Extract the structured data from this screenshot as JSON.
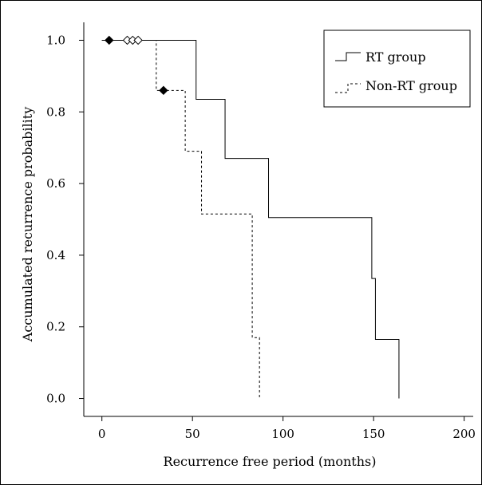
{
  "chart_data": {
    "type": "line",
    "title": "",
    "xlabel": "Recurrence free period (months)",
    "ylabel": "Accumulated recurrence probability",
    "xlim": [
      -10,
      205
    ],
    "ylim": [
      -0.05,
      1.05
    ],
    "x_ticks": [
      0,
      50,
      100,
      150,
      200
    ],
    "x_tick_labels": [
      "0",
      "50",
      "100",
      "150",
      "200"
    ],
    "y_ticks": [
      0,
      0.2,
      0.4,
      0.6,
      0.8,
      1.0
    ],
    "y_tick_labels": [
      "0.0",
      "0.2",
      "0.4",
      "0.6",
      "0.8",
      "1.0"
    ],
    "grid": false,
    "legend_position": "top-right",
    "series": [
      {
        "name": "RT group",
        "line_style": "solid",
        "color": "#000000",
        "steps": [
          [
            0,
            1.0
          ],
          [
            52,
            0.835
          ],
          [
            68,
            0.67
          ],
          [
            92,
            0.505
          ],
          [
            149,
            0.335
          ],
          [
            151,
            0.165
          ],
          [
            164,
            0.0
          ]
        ],
        "censored": [
          [
            4,
            1.0
          ]
        ],
        "censored_marker": "filled-diamond"
      },
      {
        "name": "Non-RT group",
        "line_style": "dashed",
        "color": "#000000",
        "steps": [
          [
            0,
            1.0
          ],
          [
            30,
            0.86
          ],
          [
            46,
            0.69
          ],
          [
            55,
            0.515
          ],
          [
            83,
            0.17
          ],
          [
            87,
            0.0
          ]
        ],
        "censored": [
          [
            14,
            1.0
          ],
          [
            17,
            1.0
          ],
          [
            20,
            1.0
          ],
          [
            34,
            0.86
          ]
        ],
        "censored_markers": [
          "open-diamond",
          "open-diamond",
          "open-diamond",
          "filled-diamond"
        ]
      }
    ]
  }
}
